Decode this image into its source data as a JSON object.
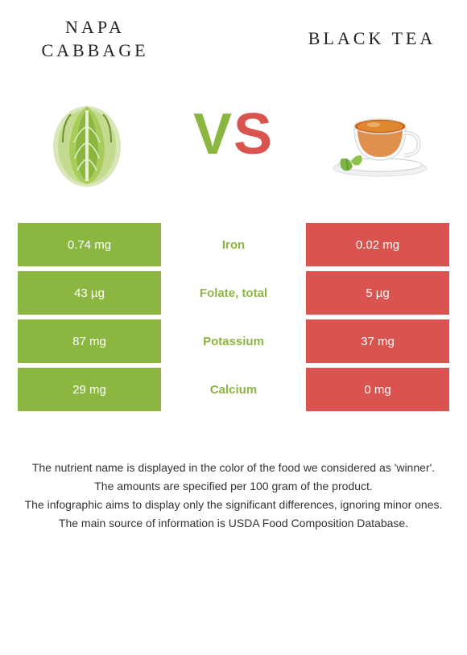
{
  "left_food": {
    "title": "Napa cabbage"
  },
  "right_food": {
    "title": "Black tea"
  },
  "vs": {
    "v": "V",
    "s": "S"
  },
  "colors": {
    "green": "#8bb741",
    "red": "#d9534f",
    "mid_text_green": "#8bb741"
  },
  "rows": [
    {
      "label": "Iron",
      "left": "0.74 mg",
      "right": "0.02 mg",
      "winner": "left"
    },
    {
      "label": "Folate, total",
      "left": "43 µg",
      "right": "5 µg",
      "winner": "left"
    },
    {
      "label": "Potassium",
      "left": "87 mg",
      "right": "37 mg",
      "winner": "left"
    },
    {
      "label": "Calcium",
      "left": "29 mg",
      "right": "0 mg",
      "winner": "left"
    }
  ],
  "footer": {
    "line1": "The nutrient name is displayed in the color of the food we considered as 'winner'.",
    "line2": "The amounts are specified per 100 gram of the product.",
    "line3": "The infographic aims to display only the significant differences, ignoring minor ones.",
    "line4": "The main source of information is USDA Food Composition Database."
  }
}
